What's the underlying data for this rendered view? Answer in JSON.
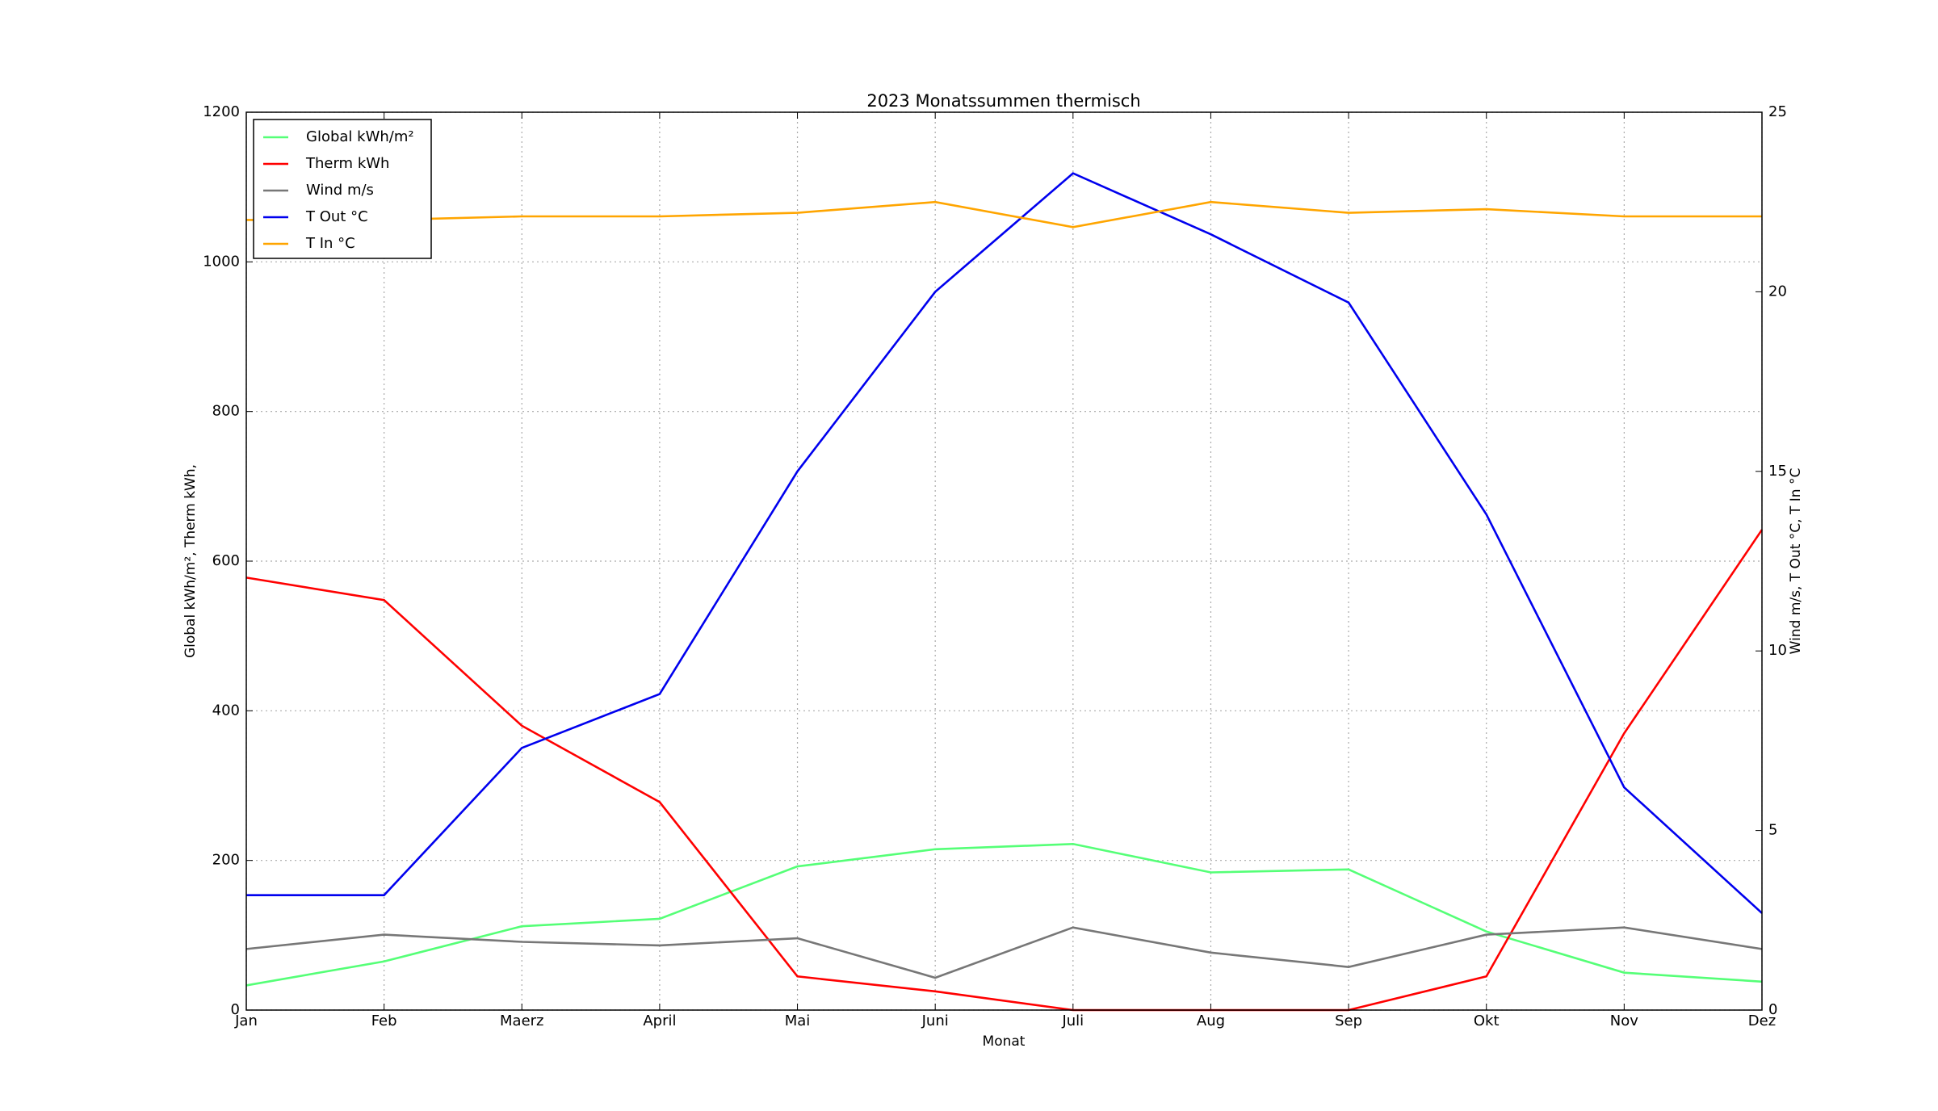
{
  "chart_data": {
    "type": "line",
    "title": "2023 Monatssummen thermisch",
    "xlabel": "Monat",
    "ylabel": "Global kWh/m², Therm kWh,",
    "y2label": "Wind m/s, T Out °C, T In °C",
    "categories": [
      "Jan",
      "Feb",
      "Maerz",
      "April",
      "Mai",
      "Juni",
      "Juli",
      "Aug",
      "Sep",
      "Okt",
      "Nov",
      "Dez"
    ],
    "ylim": [
      0,
      1200
    ],
    "yticks": [
      0,
      200,
      400,
      600,
      800,
      1000,
      1200
    ],
    "y2lim": [
      0,
      25
    ],
    "y2ticks": [
      0,
      5,
      10,
      15,
      20,
      25
    ],
    "grid": true,
    "legend": "upper left",
    "series": [
      {
        "name": "Global kWh/m²",
        "color": "#55ff77",
        "values": [
          33,
          65,
          112,
          122,
          192,
          215,
          222,
          184,
          188,
          105,
          50,
          38
        ]
      },
      {
        "name": "Therm kWh",
        "color": "#ff0000",
        "values": [
          578,
          548,
          380,
          278,
          45,
          25,
          0,
          0,
          0,
          45,
          370,
          642
        ]
      },
      {
        "name": "Wind m/s",
        "color": "#777777",
        "axis": "y2",
        "values": [
          1.7,
          2.1,
          1.9,
          1.8,
          2.0,
          0.9,
          2.3,
          1.6,
          1.2,
          2.1,
          2.3,
          1.7
        ]
      },
      {
        "name": "T Out °C",
        "color": "#0000ee",
        "axis": "y2",
        "values": [
          3.2,
          3.2,
          7.3,
          8.8,
          15.0,
          20.0,
          23.3,
          21.6,
          19.7,
          13.8,
          6.2,
          2.7
        ]
      },
      {
        "name": "T In °C",
        "color": "#ffa500",
        "axis": "y2",
        "values": [
          22.0,
          22.0,
          22.1,
          22.1,
          22.2,
          22.5,
          21.8,
          22.5,
          22.2,
          22.3,
          22.1,
          22.1
        ]
      }
    ]
  }
}
